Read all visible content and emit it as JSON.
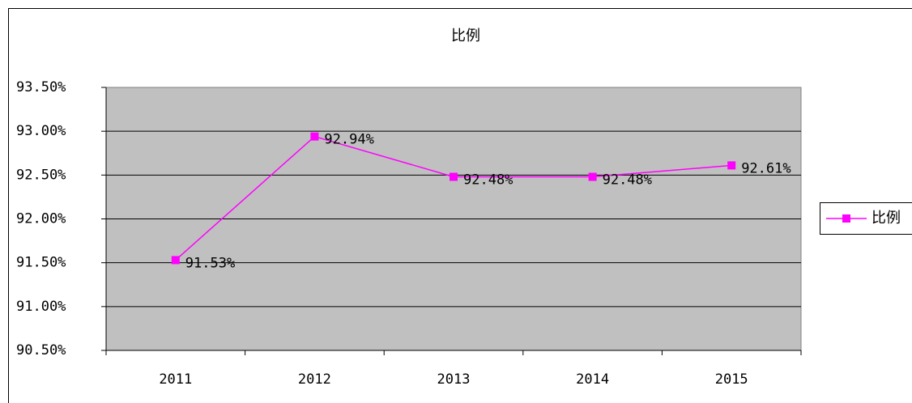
{
  "chart_data": {
    "type": "line",
    "title": "比例",
    "categories": [
      "2011",
      "2012",
      "2013",
      "2014",
      "2015"
    ],
    "series": [
      {
        "name": "比例",
        "color": "#ff00ff",
        "values": [
          91.53,
          92.94,
          92.48,
          92.48,
          92.61
        ],
        "value_labels": [
          "91.53%",
          "92.94%",
          "92.48%",
          "92.48%",
          "92.61%"
        ]
      }
    ],
    "ylim": [
      90.5,
      93.5
    ],
    "yticks": [
      {
        "value": 90.5,
        "label": "90.50%"
      },
      {
        "value": 91,
        "label": "91.00%"
      },
      {
        "value": 91.5,
        "label": "91.50%"
      },
      {
        "value": 92,
        "label": "92.00%"
      },
      {
        "value": 92.5,
        "label": "92.50%"
      },
      {
        "value": 93,
        "label": "93.00%"
      },
      {
        "value": 93.5,
        "label": "93.50%"
      }
    ],
    "grid": true,
    "legend": "right"
  }
}
